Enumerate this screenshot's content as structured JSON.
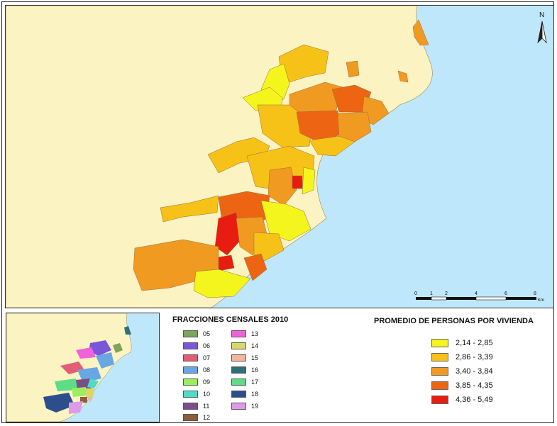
{
  "north_arrow": {
    "label": "N",
    "icon": "north-arrow-icon"
  },
  "scale_bar": {
    "ticks": [
      "0",
      "1",
      "2",
      "4",
      "6",
      "8"
    ],
    "unit": "Km"
  },
  "colors": {
    "sea": "#bfe7fb",
    "land": "#fbf4c2",
    "fraction_line": "#9a6a3a"
  },
  "fracciones": {
    "title": "FRACCIONES CENSALES 2010",
    "items": [
      {
        "code": "05",
        "color": "#7ea35a"
      },
      {
        "code": "06",
        "color": "#7a56d8"
      },
      {
        "code": "07",
        "color": "#e25e74"
      },
      {
        "code": "08",
        "color": "#69a6e4"
      },
      {
        "code": "09",
        "color": "#9dee5e"
      },
      {
        "code": "10",
        "color": "#4fdcc7"
      },
      {
        "code": "11",
        "color": "#7a4e8a"
      },
      {
        "code": "12",
        "color": "#8b5e3c"
      },
      {
        "code": "13",
        "color": "#f062d9"
      },
      {
        "code": "14",
        "color": "#d8d86a"
      },
      {
        "code": "15",
        "color": "#f2b6a0"
      },
      {
        "code": "16",
        "color": "#2f6f7a"
      },
      {
        "code": "17",
        "color": "#5edc86"
      },
      {
        "code": "18",
        "color": "#2d4e8c"
      },
      {
        "code": "19",
        "color": "#dd9be8"
      }
    ]
  },
  "promedio": {
    "title": "PROMEDIO DE PERSONAS POR VIVIENDA",
    "classes": [
      {
        "label": "2,14 - 2,85",
        "color": "#f5f51e"
      },
      {
        "label": "2,86 - 3,39",
        "color": "#f7c218"
      },
      {
        "label": "3,40 - 3,84",
        "color": "#f19a22"
      },
      {
        "label": "3,85 - 4,35",
        "color": "#ed6512"
      },
      {
        "label": "4,36 - 5,49",
        "color": "#e81c10"
      }
    ]
  }
}
